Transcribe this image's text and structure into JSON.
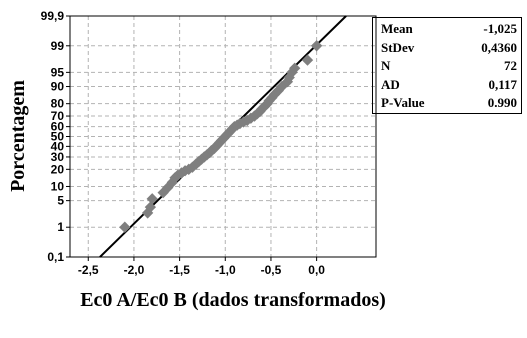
{
  "chart_data": {
    "type": "scatter",
    "plot_type": "normal probability plot",
    "xlabel": "Ec0  A/Ec0  B (dados transformados)",
    "ylabel": "Porcentagem",
    "x_ticks": [
      "-2,5",
      "-2,0",
      "-1,5",
      "-1,0",
      "-0,5",
      "0,0"
    ],
    "y_ticks": [
      "0,1",
      "1",
      "5",
      "10",
      "20",
      "30",
      "40",
      "50",
      "60",
      "70",
      "80",
      "90",
      "95",
      "99",
      "99,9"
    ],
    "xlim": [
      -2.7,
      0.65
    ],
    "ylim_percent": [
      0.1,
      99.9
    ],
    "y_scale": "normal probability",
    "grid": true,
    "marker_color": "#7f7f7f",
    "fit_line": {
      "mean": -1.025,
      "stdev": 0.436,
      "color": "#000000"
    },
    "points": [
      {
        "x": -2.1,
        "p": 1.0
      },
      {
        "x": -1.85,
        "p": 2.5
      },
      {
        "x": -1.82,
        "p": 3.5
      },
      {
        "x": -1.8,
        "p": 5.5
      },
      {
        "x": -1.68,
        "p": 7.5
      },
      {
        "x": -1.63,
        "p": 9.5
      },
      {
        "x": -1.58,
        "p": 12.0
      },
      {
        "x": -1.55,
        "p": 14.5
      },
      {
        "x": -1.52,
        "p": 16.0
      },
      {
        "x": -1.48,
        "p": 17.5
      },
      {
        "x": -1.44,
        "p": 19.0
      },
      {
        "x": -1.4,
        "p": 20.0
      },
      {
        "x": -1.36,
        "p": 21.5
      },
      {
        "x": -1.32,
        "p": 24.0
      },
      {
        "x": -1.29,
        "p": 26.0
      },
      {
        "x": -1.26,
        "p": 28.0
      },
      {
        "x": -1.23,
        "p": 30.0
      },
      {
        "x": -1.2,
        "p": 32.0
      },
      {
        "x": -1.17,
        "p": 34.0
      },
      {
        "x": -1.15,
        "p": 36.0
      },
      {
        "x": -1.12,
        "p": 38.0
      },
      {
        "x": -1.1,
        "p": 40.0
      },
      {
        "x": -1.08,
        "p": 42.0
      },
      {
        "x": -1.06,
        "p": 44.0
      },
      {
        "x": -1.04,
        "p": 46.0
      },
      {
        "x": -1.02,
        "p": 48.0
      },
      {
        "x": -1.0,
        "p": 50.0
      },
      {
        "x": -0.98,
        "p": 52.0
      },
      {
        "x": -0.96,
        "p": 54.0
      },
      {
        "x": -0.94,
        "p": 56.0
      },
      {
        "x": -0.92,
        "p": 58.0
      },
      {
        "x": -0.9,
        "p": 60.0
      },
      {
        "x": -0.87,
        "p": 61.5
      },
      {
        "x": -0.84,
        "p": 63.0
      },
      {
        "x": -0.8,
        "p": 64.5
      },
      {
        "x": -0.76,
        "p": 66.0
      },
      {
        "x": -0.72,
        "p": 68.0
      },
      {
        "x": -0.68,
        "p": 70.0
      },
      {
        "x": -0.65,
        "p": 72.0
      },
      {
        "x": -0.62,
        "p": 74.0
      },
      {
        "x": -0.6,
        "p": 76.0
      },
      {
        "x": -0.57,
        "p": 78.0
      },
      {
        "x": -0.54,
        "p": 80.0
      },
      {
        "x": -0.52,
        "p": 82.0
      },
      {
        "x": -0.49,
        "p": 84.0
      },
      {
        "x": -0.46,
        "p": 86.0
      },
      {
        "x": -0.42,
        "p": 88.0
      },
      {
        "x": -0.38,
        "p": 90.0
      },
      {
        "x": -0.32,
        "p": 92.0
      },
      {
        "x": -0.3,
        "p": 93.5
      },
      {
        "x": -0.27,
        "p": 95.0
      },
      {
        "x": -0.24,
        "p": 96.0
      },
      {
        "x": -0.1,
        "p": 97.5
      },
      {
        "x": 0.0,
        "p": 99.0
      }
    ]
  },
  "stats": [
    {
      "label": "Mean",
      "value": "-1,025"
    },
    {
      "label": "StDev",
      "value": "0,4360"
    },
    {
      "label": "N",
      "value": "72"
    },
    {
      "label": "AD",
      "value": "0,117"
    },
    {
      "label": "P-Value",
      "value": "0.990"
    }
  ]
}
